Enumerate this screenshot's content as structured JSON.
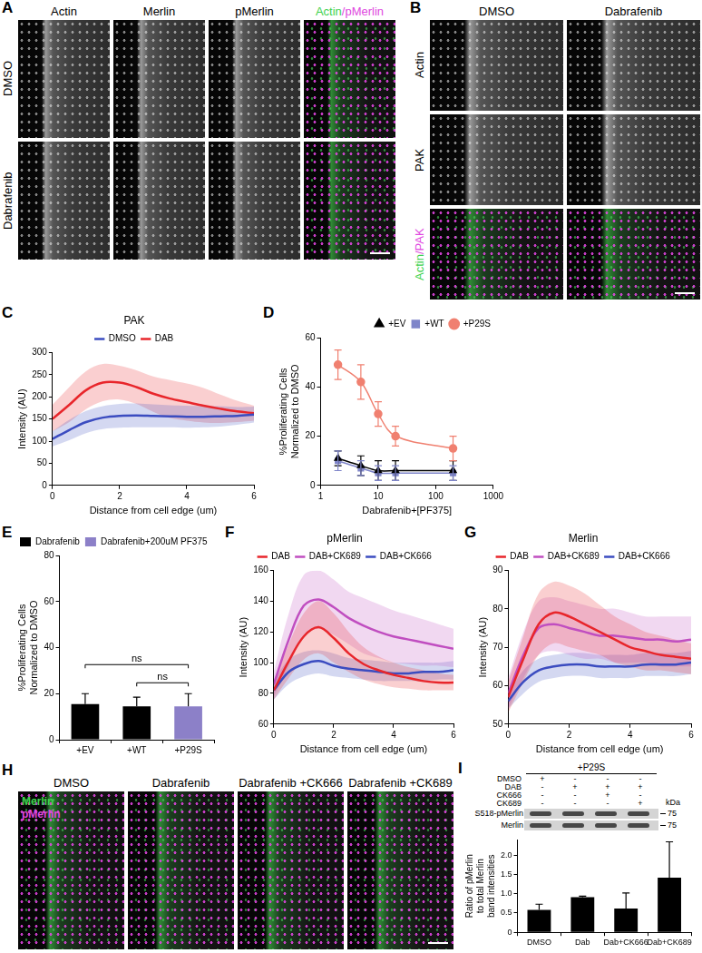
{
  "image_panels": [
    {
      "label": "A",
      "columns": [
        [
          {
            "text": "Actin"
          }
        ],
        [
          {
            "text": "Merlin"
          }
        ],
        [
          {
            "text": "pMerlin"
          }
        ],
        [
          {
            "text": "Actin",
            "color": "#3fd24f"
          },
          {
            "text": "/pMerlin",
            "color": "#e048e0"
          }
        ]
      ],
      "rows": [
        [
          {
            "text": "DMSO"
          }
        ],
        [
          {
            "text": "Dabrafenib"
          }
        ]
      ]
    },
    {
      "label": "B",
      "columns": [
        [
          {
            "text": "DMSO"
          }
        ],
        [
          {
            "text": "Dabrafenib"
          }
        ]
      ],
      "rows": [
        [
          {
            "text": "Actin"
          }
        ],
        [
          {
            "text": "PAK"
          }
        ],
        [
          {
            "text": "Actin",
            "color": "#3fd24f"
          },
          {
            "text": "/PAK",
            "color": "#e048e0"
          }
        ]
      ]
    },
    {
      "label": "H",
      "columns": [
        [
          {
            "text": "DMSO"
          }
        ],
        [
          {
            "text": "Dabrafenib"
          }
        ],
        [
          {
            "text": "Dabrafenib +CK666"
          }
        ],
        [
          {
            "text": "Dabrafenib +CK689"
          }
        ]
      ],
      "legend": [
        {
          "text": "Merlin",
          "color": "#3fd24f"
        },
        {
          "text": "pMerlin",
          "color": "#e048e0"
        }
      ]
    }
  ],
  "blot": {
    "label": "I",
    "title": "+P29S",
    "conditions": [
      "DMSO",
      "DAB",
      "CK666",
      "CK689"
    ],
    "matrix": [
      [
        "+",
        "-",
        "-",
        "-"
      ],
      [
        "-",
        "+",
        "+",
        "+"
      ],
      [
        "-",
        "-",
        "+",
        "-"
      ],
      [
        "-",
        "-",
        "-",
        "+"
      ]
    ],
    "bands": [
      "S518-pMerlin",
      "Merlin"
    ],
    "unit": "kDa",
    "marker": 75
  },
  "chart_data": [
    {
      "label": "C",
      "type": "line",
      "title": "PAK",
      "xlabel": "Distance from cell edge (um)",
      "ylabel": "Intensity (AU)",
      "x": [
        0,
        0.5,
        1,
        1.5,
        2,
        2.5,
        3,
        3.5,
        4,
        4.5,
        5,
        5.5,
        6
      ],
      "xlim": [
        0,
        6
      ],
      "xticks": [
        0,
        2,
        4,
        6
      ],
      "ylim": [
        0,
        300
      ],
      "yticks": [
        0,
        50,
        100,
        150,
        200,
        250,
        300
      ],
      "grid": false,
      "legend": "top",
      "series": [
        {
          "name": "DMSO",
          "color": "#3b4cc0",
          "values": [
            105,
            125,
            143,
            153,
            157,
            158,
            157,
            156,
            155,
            155,
            156,
            157,
            160
          ],
          "lower": [
            88,
            102,
            118,
            127,
            130,
            131,
            131,
            131,
            130,
            131,
            133,
            137,
            142
          ],
          "upper": [
            122,
            148,
            168,
            179,
            184,
            185,
            183,
            181,
            180,
            179,
            179,
            177,
            178
          ]
        },
        {
          "name": "DAB",
          "color": "#e8262b",
          "values": [
            150,
            182,
            215,
            232,
            232,
            222,
            207,
            196,
            188,
            180,
            173,
            167,
            163
          ],
          "lower": [
            122,
            143,
            172,
            190,
            194,
            184,
            166,
            152,
            146,
            142,
            141,
            143,
            146
          ],
          "upper": [
            182,
            222,
            258,
            274,
            270,
            260,
            246,
            238,
            230,
            220,
            205,
            191,
            180
          ]
        }
      ]
    },
    {
      "label": "D",
      "type": "line",
      "xlabel": "Dabrafenib+[PF375]",
      "ylabel": "%Proliferating Cells Normalized to DMSO",
      "x": [
        2,
        5,
        10,
        20,
        200
      ],
      "log": "x",
      "xlim": [
        1,
        1000
      ],
      "xticks": [
        1,
        10,
        100,
        1000
      ],
      "ylim": [
        0,
        60
      ],
      "yticks": [
        0,
        20,
        40,
        60
      ],
      "grid": false,
      "legend": "top-right",
      "series": [
        {
          "name": "+EV",
          "color": "#000000",
          "marker": "triangle",
          "values": [
            11,
            8,
            6,
            6,
            6
          ],
          "errors": [
            3,
            4,
            4,
            4,
            4
          ]
        },
        {
          "name": "+WT",
          "color": "#7f85c9",
          "marker": "square",
          "values": [
            10,
            7,
            5,
            5,
            5
          ],
          "errors": [
            4,
            3,
            3,
            3,
            3
          ]
        },
        {
          "name": "+P29S",
          "color": "#f08070",
          "marker": "circle",
          "values": [
            49,
            42,
            29,
            20,
            15
          ],
          "errors": [
            6,
            7,
            5,
            4,
            5
          ]
        }
      ]
    },
    {
      "label": "E",
      "type": "bar",
      "ylabel": "%Proliferating Cells Normalized to DMSO",
      "categories": [
        "+EV",
        "+WT",
        "+P29S"
      ],
      "ylim": [
        0,
        80
      ],
      "yticks": [
        0,
        20,
        40,
        60,
        80
      ],
      "grid": false,
      "legend": "top-left",
      "series": [
        {
          "name": "Dabrafenib",
          "color": "#000000",
          "values": [
            15.5,
            14.5,
            null
          ],
          "errors": [
            4.5,
            4,
            null
          ]
        },
        {
          "name": "Dabrafenib+200uM PF375",
          "color": "#8c80c8",
          "values": [
            null,
            null,
            14.5
          ],
          "errors": [
            null,
            null,
            5.5
          ]
        }
      ],
      "annotations": [
        {
          "text": "ns",
          "between": [
            "+EV",
            "+P29S"
          ]
        },
        {
          "text": "ns",
          "between": [
            "+WT",
            "+P29S"
          ]
        }
      ]
    },
    {
      "label": "F",
      "type": "line",
      "title": "pMerlin",
      "xlabel": "Distance from cell edge (um)",
      "ylabel": "Intensity (AU)",
      "x": [
        0,
        0.5,
        1,
        1.5,
        2,
        2.5,
        3,
        3.5,
        4,
        4.5,
        5,
        5.5,
        6
      ],
      "xlim": [
        0,
        6
      ],
      "xticks": [
        0,
        2,
        4,
        6
      ],
      "ylim": [
        60,
        160
      ],
      "yticks": [
        60,
        80,
        100,
        120,
        140,
        160
      ],
      "grid": false,
      "legend": "top",
      "series": [
        {
          "name": "DAB",
          "color": "#e8262b",
          "values": [
            82,
            101,
            117,
            123,
            116,
            106,
            99,
            95,
            92,
            90,
            88,
            87,
            87
          ],
          "lower": [
            76,
            90,
            102,
            106,
            100,
            94,
            89,
            86,
            84,
            83,
            82,
            82,
            82
          ],
          "upper": [
            88,
            112,
            132,
            140,
            132,
            120,
            110,
            104,
            100,
            97,
            95,
            93,
            92
          ]
        },
        {
          "name": "DAB+CK689",
          "color": "#c04ec0",
          "values": [
            86,
            115,
            137,
            141,
            136,
            129,
            124,
            120,
            117,
            115,
            113,
            111,
            109
          ],
          "lower": [
            78,
            98,
            117,
            122,
            118,
            112,
            106,
            103,
            100,
            99,
            98,
            98,
            97
          ],
          "upper": [
            94,
            132,
            157,
            160,
            154,
            146,
            142,
            138,
            134,
            131,
            128,
            125,
            122
          ]
        },
        {
          "name": "DAB+CK666",
          "color": "#3b4cc0",
          "values": [
            82,
            94,
            99,
            101,
            98,
            96,
            95,
            94,
            93,
            93,
            94,
            94,
            95
          ],
          "lower": [
            76,
            86,
            91,
            93,
            91,
            90,
            89,
            88,
            88,
            88,
            88,
            89,
            89
          ],
          "upper": [
            88,
            102,
            107,
            108,
            106,
            103,
            102,
            101,
            100,
            100,
            100,
            100,
            101
          ]
        }
      ]
    },
    {
      "label": "G",
      "type": "line",
      "title": "Merlin",
      "xlabel": "Distance from cell edge (um)",
      "ylabel": "Intensity (AU)",
      "x": [
        0,
        0.5,
        1,
        1.5,
        2,
        2.5,
        3,
        3.5,
        4,
        4.5,
        5,
        5.5,
        6
      ],
      "xlim": [
        0,
        6
      ],
      "xticks": [
        0,
        2,
        4,
        6
      ],
      "ylim": [
        50,
        90
      ],
      "yticks": [
        50,
        60,
        70,
        80,
        90
      ],
      "grid": false,
      "legend": "top",
      "series": [
        {
          "name": "DAB",
          "color": "#e8262b",
          "values": [
            57,
            67,
            76,
            79,
            78,
            76,
            74,
            72,
            70,
            69,
            68,
            67.5,
            67
          ],
          "lower": [
            53,
            61,
            68,
            71,
            70,
            69,
            68,
            66,
            65,
            64,
            64,
            63.5,
            63
          ],
          "upper": [
            61,
            73,
            84,
            87,
            86,
            84,
            81,
            78,
            76,
            74,
            73,
            72,
            71
          ]
        },
        {
          "name": "DAB+CK689",
          "color": "#c04ec0",
          "values": [
            58,
            68,
            75,
            76,
            75,
            74,
            73,
            73,
            72.5,
            72,
            72,
            71.5,
            72
          ],
          "lower": [
            54,
            62,
            68,
            69,
            68,
            67,
            67,
            66,
            66,
            66,
            65,
            65,
            65
          ],
          "upper": [
            62,
            74,
            82,
            83,
            82,
            81,
            80,
            80,
            79,
            78,
            78,
            78,
            78
          ]
        },
        {
          "name": "DAB+CK666",
          "color": "#3b4cc0",
          "values": [
            56,
            61,
            64,
            65,
            65.5,
            65.5,
            65,
            65,
            65,
            65.5,
            65.5,
            65.5,
            66
          ],
          "lower": [
            54,
            58,
            61,
            62,
            62.5,
            62.5,
            62,
            62,
            62,
            62.5,
            62.5,
            62.5,
            63
          ],
          "upper": [
            58,
            64,
            67,
            68,
            68.5,
            68.5,
            68,
            68,
            68,
            68.5,
            68.5,
            68.5,
            69
          ]
        }
      ]
    },
    {
      "type": "bar",
      "ylabel": "Ratio of pMerlin to total Merlin band intensities",
      "categories": [
        "DMSO",
        "Dab",
        "Dab+CK666",
        "Dab+CK689"
      ],
      "values": [
        0.58,
        0.91,
        0.62,
        1.42
      ],
      "errors": [
        0.15,
        0.03,
        0.4,
        0.93
      ],
      "color": "#000000",
      "ylim": [
        0,
        2.4
      ],
      "yticks": [
        0,
        0.5,
        {
          "value": 1,
          "label": "1.0"
        },
        1.5,
        {
          "value": 2,
          "label": "2.0"
        }
      ],
      "grid": false
    }
  ]
}
